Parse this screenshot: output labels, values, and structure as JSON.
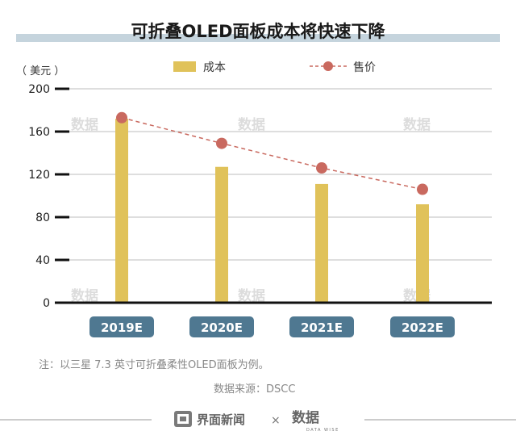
{
  "title": "可折叠OLED面板成本将快速下降",
  "unit": "（ 美元 ）",
  "note": "注：以三星 7.3 英寸可折叠柔性OLED面板为例。",
  "source": "数据来源：DSCC",
  "footer": {
    "brand": "界面新闻",
    "separator": "×",
    "partner": "数据",
    "partner_sub": "DATA WISE"
  },
  "watermark": "数据",
  "colors": {
    "bar": "#e0c25a",
    "line": "#c9695f",
    "category_bg": "#4f7891",
    "title_band": "#c5d4dd"
  },
  "chart_data": {
    "type": "bar",
    "categories": [
      "2019E",
      "2020E",
      "2021E",
      "2022E"
    ],
    "series": [
      {
        "name": "成本",
        "type": "bar",
        "values": [
          172,
          127,
          111,
          92
        ]
      },
      {
        "name": "售价",
        "type": "line",
        "values": [
          173,
          149,
          126,
          106
        ]
      }
    ],
    "ylim": [
      0,
      200
    ],
    "yticks": [
      0,
      40,
      80,
      120,
      160,
      200
    ],
    "ylabel": "（ 美元 ）",
    "grid": true,
    "legend": "top"
  }
}
